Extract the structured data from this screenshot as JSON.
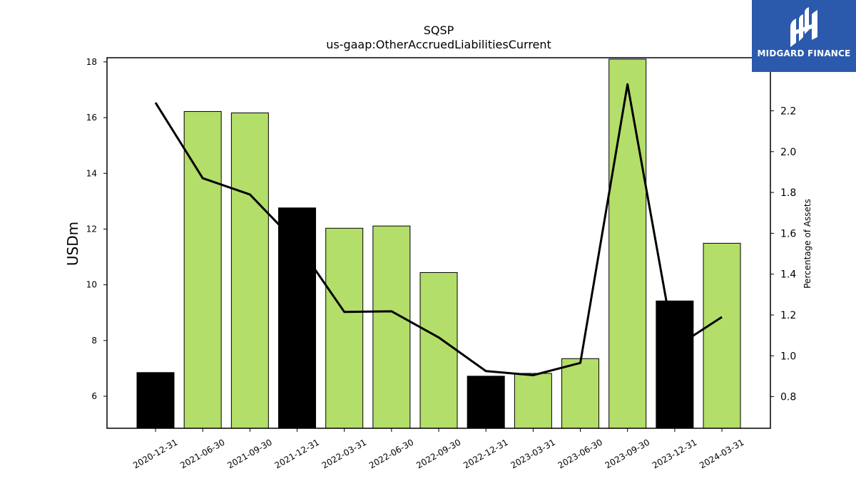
{
  "chart_data": {
    "type": "bar",
    "title": "SQSP",
    "subtitle": "us-gaap:OtherAccruedLiabilitiesCurrent",
    "ylabel": "USDm",
    "y2label": "Percentage of Assets",
    "categories": [
      "2020-12-31",
      "2021-06-30",
      "2021-09-30",
      "2021-12-31",
      "2022-03-31",
      "2022-06-30",
      "2022-09-30",
      "2022-12-31",
      "2023-03-31",
      "2023-06-30",
      "2023-09-30",
      "2023-12-31",
      "2024-03-31"
    ],
    "series": [
      {
        "type": "bar",
        "values": [
          6.85,
          16.22,
          16.17,
          12.76,
          12.03,
          12.11,
          10.44,
          6.72,
          6.82,
          7.35,
          18.1,
          9.42,
          11.49
        ],
        "colors": [
          "#000000",
          "#b3de69",
          "#b3de69",
          "#000000",
          "#b3de69",
          "#b3de69",
          "#b3de69",
          "#000000",
          "#b3de69",
          "#b3de69",
          "#b3de69",
          "#000000",
          "#b3de69"
        ]
      },
      {
        "type": "line",
        "axis": "right",
        "values": [
          2.24,
          1.87,
          1.79,
          1.55,
          1.215,
          1.218,
          1.09,
          0.925,
          0.905,
          0.965,
          2.33,
          1.04,
          1.19
        ],
        "color": "#000000"
      }
    ],
    "ylim": [
      4.85,
      18.15
    ],
    "y2lim": [
      0.645,
      2.46
    ],
    "yticks": [
      6,
      8,
      10,
      12,
      14,
      16,
      18
    ],
    "y2ticks": [
      0.8,
      1.0,
      1.2,
      1.4,
      1.6,
      1.8,
      2.0,
      2.2
    ],
    "grid": false
  },
  "logo": {
    "text": "MIDGARD FINANCE",
    "background": "#2b5aad"
  }
}
